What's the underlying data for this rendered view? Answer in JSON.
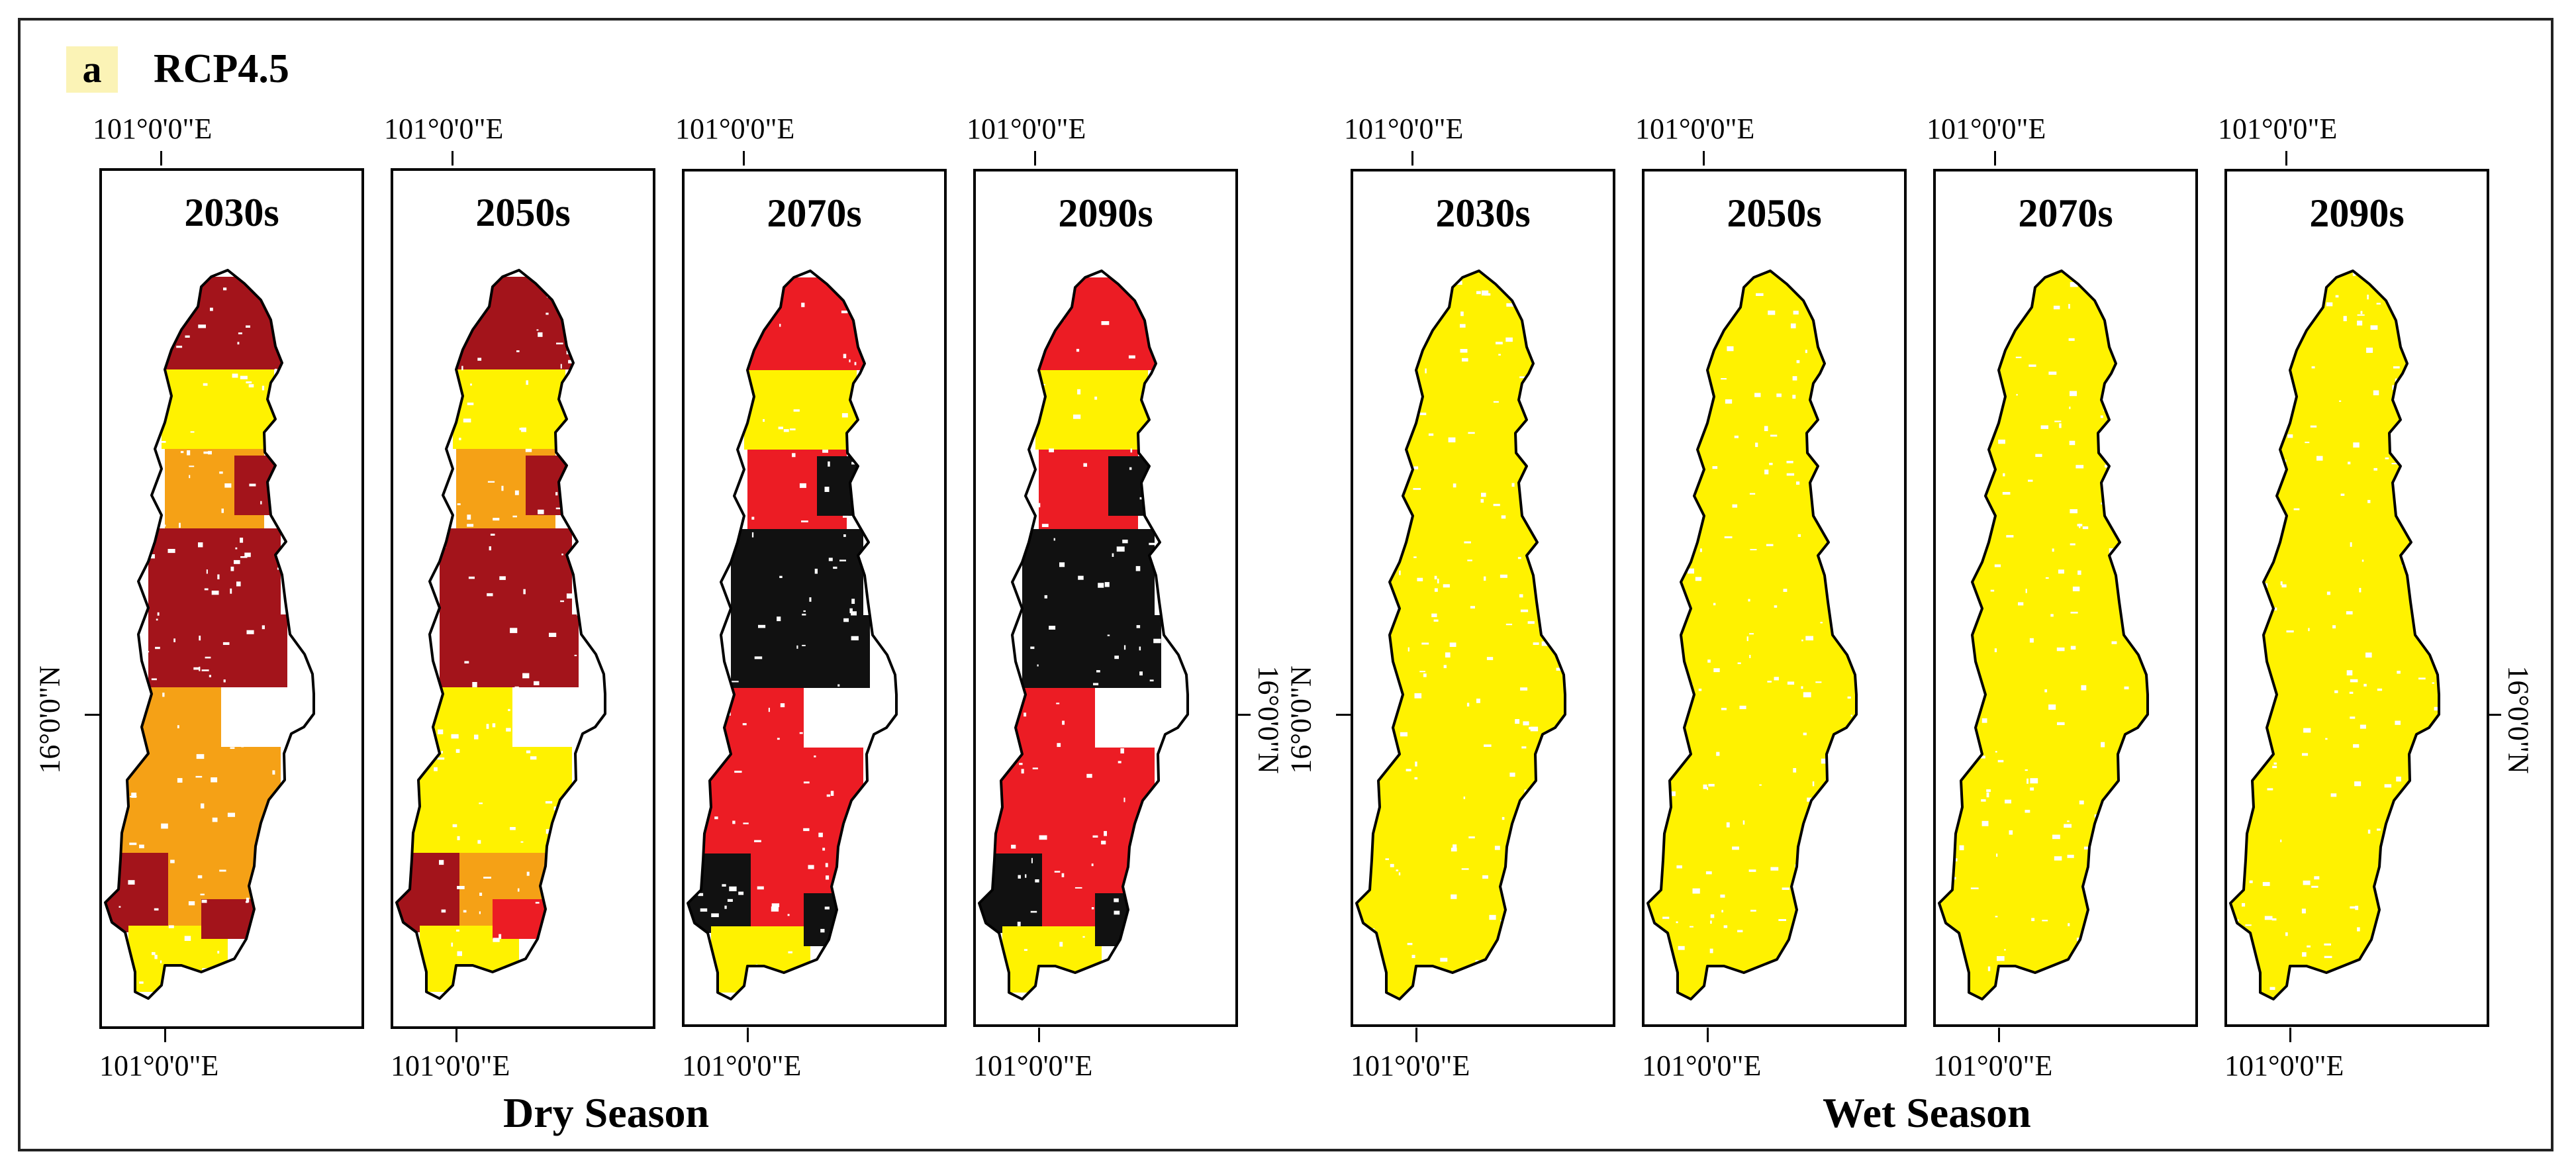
{
  "figure": {
    "panel_letter": "a",
    "scenario": "RCP4.5",
    "lon_label": "101°0'0\"E",
    "lat_label": "16°0'0\"N"
  },
  "seasons": [
    {
      "label": "Dry Season",
      "decades": [
        "2030s",
        "2050s",
        "2070s",
        "2090s"
      ]
    },
    {
      "label": "Wet Season",
      "decades": [
        "2030s",
        "2050s",
        "2070s",
        "2090s"
      ]
    }
  ],
  "colors": {
    "darkred": "#a3141b",
    "red": "#ec1c24",
    "orange": "#f5a116",
    "yellow": "#fff200",
    "black": "#111111",
    "outline": "#000000",
    "label_bg": "#fbf3b6"
  }
}
